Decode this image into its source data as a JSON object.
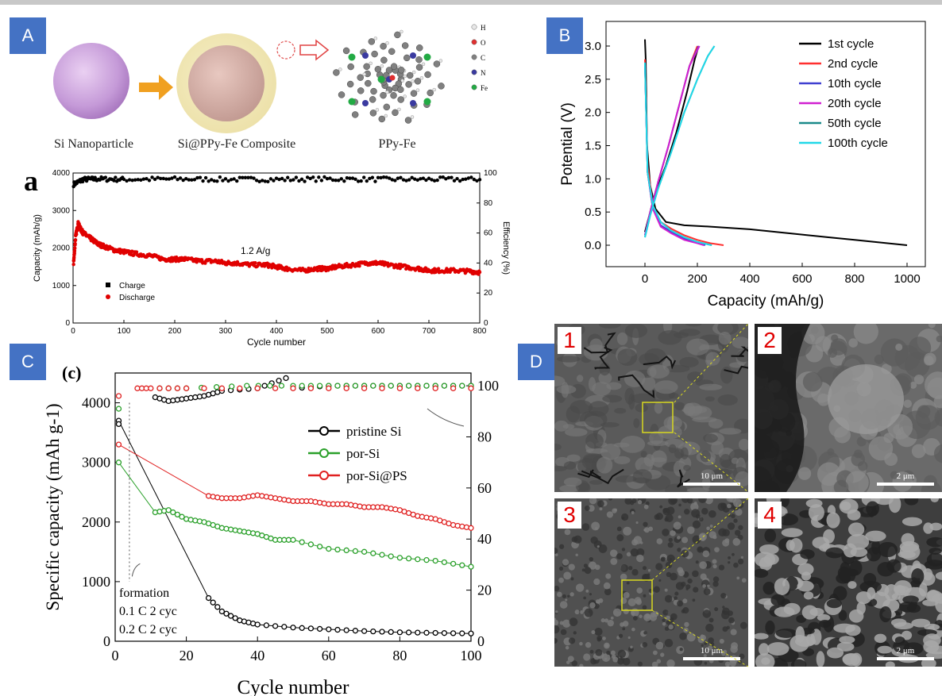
{
  "panels": {
    "A": {
      "label": "A",
      "captions": [
        "Si Nanoparticle",
        "Si@PPy-Fe Composite",
        "PPy-Fe"
      ],
      "legend": [
        {
          "label": "H",
          "color": "#e8e8e8"
        },
        {
          "label": "O",
          "color": "#e03030"
        },
        {
          "label": "C",
          "color": "#808080"
        },
        {
          "label": "N",
          "color": "#3a3aa0"
        },
        {
          "label": "Fe",
          "color": "#22aa44"
        }
      ]
    },
    "B": {
      "label": "B"
    },
    "C": {
      "label": "C"
    },
    "D": {
      "label": "D",
      "images": [
        {
          "number": "1",
          "scale": "10 μm"
        },
        {
          "number": "2",
          "scale": "2 μm"
        },
        {
          "number": "3",
          "scale": "10 μm"
        },
        {
          "number": "4",
          "scale": "2 μm"
        }
      ]
    }
  },
  "chart_data": [
    {
      "id": "a",
      "type": "scatter",
      "panel_letter": "a",
      "xlabel": "Cycle number",
      "ylabel": "Capacity (mAh/g)",
      "y2label": "Efficiency (%)",
      "xlim": [
        0,
        800
      ],
      "ylim": [
        0,
        4000
      ],
      "y2lim": [
        0,
        100
      ],
      "xticks": [
        0,
        100,
        200,
        300,
        400,
        500,
        600,
        700,
        800
      ],
      "yticks": [
        0,
        1000,
        2000,
        3000,
        4000
      ],
      "y2ticks": [
        0,
        20,
        40,
        60,
        80,
        100
      ],
      "annotation": "1.2 A/g",
      "legend_position": "lower-left",
      "series": [
        {
          "name": "Charge",
          "color": "#000000",
          "axis": "left",
          "x": [
            1,
            20,
            50,
            100,
            200,
            300,
            400,
            500,
            600,
            700,
            800
          ],
          "y": [
            3700,
            3830,
            3840,
            3830,
            3840,
            3830,
            3830,
            3840,
            3830,
            3830,
            3830
          ]
        },
        {
          "name": "Discharge",
          "color": "#e00000",
          "axis": "left",
          "x": [
            1,
            5,
            10,
            15,
            20,
            30,
            40,
            50,
            60,
            80,
            100,
            120,
            150,
            180,
            200,
            220,
            250,
            280,
            300,
            320,
            350,
            380,
            400,
            420,
            450,
            480,
            500,
            520,
            550,
            580,
            600,
            620,
            650,
            680,
            700,
            720,
            750,
            780,
            800
          ],
          "y": [
            1600,
            2300,
            2650,
            2500,
            2400,
            2300,
            2200,
            2100,
            2050,
            1950,
            1900,
            1850,
            1800,
            1700,
            1700,
            1700,
            1650,
            1650,
            1600,
            1600,
            1550,
            1550,
            1500,
            1450,
            1400,
            1450,
            1450,
            1500,
            1550,
            1600,
            1600,
            1550,
            1500,
            1450,
            1400,
            1400,
            1400,
            1380,
            1350
          ]
        }
      ]
    },
    {
      "id": "b",
      "type": "line",
      "xlabel": "Capacity (mAh/g)",
      "ylabel": "Potential (V)",
      "xlim": [
        0,
        1000
      ],
      "ylim": [
        0,
        3.0
      ],
      "xticks": [
        0,
        200,
        400,
        600,
        800,
        1000
      ],
      "yticks": [
        0.0,
        0.5,
        1.0,
        1.5,
        2.0,
        2.5,
        3.0
      ],
      "legend_position": "top-right",
      "series": [
        {
          "name": "1st cycle",
          "color": "#000000",
          "discharge": {
            "x": [
              0,
              3,
              8,
              20,
              40,
              80,
              150,
              250,
              400,
              500,
              600,
              700,
              800,
              900,
              1000
            ],
            "y": [
              3.1,
              2.8,
              1.5,
              0.9,
              0.55,
              0.35,
              0.3,
              0.28,
              0.24,
              0.2,
              0.16,
              0.12,
              0.08,
              0.04,
              0.0
            ]
          },
          "charge": {
            "x": [
              0,
              20,
              40,
              80,
              120,
              160,
              190,
              205
            ],
            "y": [
              0.2,
              0.5,
              0.8,
              1.2,
              1.7,
              2.3,
              2.8,
              3.0
            ]
          }
        },
        {
          "name": "2nd cycle",
          "color": "#ff3030",
          "discharge": {
            "x": [
              0,
              10,
              30,
              60,
              100,
              150,
              200,
              250,
              300
            ],
            "y": [
              2.8,
              1.2,
              0.6,
              0.35,
              0.25,
              0.15,
              0.08,
              0.03,
              0.0
            ]
          },
          "charge": {
            "x": [
              0,
              20,
              50,
              90,
              130,
              170,
              200
            ],
            "y": [
              0.15,
              0.5,
              0.95,
              1.5,
              2.1,
              2.7,
              3.0
            ]
          }
        },
        {
          "name": "10th cycle",
          "color": "#3f3fd0",
          "discharge": {
            "x": [
              0,
              10,
              30,
              60,
              100,
              150,
              200,
              230
            ],
            "y": [
              2.75,
              1.1,
              0.55,
              0.3,
              0.2,
              0.1,
              0.04,
              0.0
            ]
          },
          "charge": {
            "x": [
              0,
              20,
              50,
              90,
              130,
              170,
              205
            ],
            "y": [
              0.15,
              0.5,
              0.95,
              1.5,
              2.1,
              2.7,
              3.0
            ]
          }
        },
        {
          "name": "20th cycle",
          "color": "#d020d0",
          "discharge": {
            "x": [
              0,
              10,
              30,
              60,
              100,
              150,
              200,
              225
            ],
            "y": [
              2.75,
              1.1,
              0.55,
              0.28,
              0.18,
              0.08,
              0.03,
              0.0
            ]
          },
          "charge": {
            "x": [
              0,
              20,
              50,
              90,
              130,
              170,
              208
            ],
            "y": [
              0.15,
              0.5,
              0.95,
              1.5,
              2.1,
              2.7,
              3.0
            ]
          }
        },
        {
          "name": "50th cycle",
          "color": "#1a8a8a",
          "discharge": {
            "x": [
              0,
              10,
              30,
              60,
              100,
              150,
              200,
              255
            ],
            "y": [
              2.75,
              1.1,
              0.6,
              0.35,
              0.22,
              0.12,
              0.05,
              0.0
            ]
          },
          "charge": {
            "x": [
              0,
              20,
              50,
              100,
              150,
              200,
              240,
              265
            ],
            "y": [
              0.12,
              0.45,
              0.85,
              1.4,
              2.0,
              2.5,
              2.85,
              3.0
            ]
          }
        },
        {
          "name": "100th cycle",
          "color": "#20d8e8",
          "discharge": {
            "x": [
              0,
              10,
              30,
              60,
              100,
              150,
              200,
              255
            ],
            "y": [
              2.75,
              1.1,
              0.6,
              0.35,
              0.22,
              0.12,
              0.05,
              0.0
            ]
          },
          "charge": {
            "x": [
              0,
              20,
              50,
              100,
              150,
              200,
              240,
              265
            ],
            "y": [
              0.12,
              0.45,
              0.85,
              1.4,
              2.0,
              2.5,
              2.85,
              3.0
            ]
          }
        }
      ]
    },
    {
      "id": "c",
      "type": "line",
      "panel_letter": "(c)",
      "xlabel": "Cycle number",
      "ylabel": "Specific capacity (mAh g-1)",
      "xlim": [
        0,
        100
      ],
      "ylim": [
        0,
        4500
      ],
      "y2lim": [
        0,
        105
      ],
      "xticks": [
        0,
        20,
        40,
        60,
        80,
        100
      ],
      "yticks": [
        0,
        1000,
        2000,
        3000,
        4000
      ],
      "y2ticks": [
        0,
        20,
        40,
        60,
        80,
        100
      ],
      "legend_position": "top-right",
      "annotation": [
        "formation",
        "0.1 C 2 cyc",
        "0.2 C 2 cyc"
      ],
      "series": [
        {
          "name": "pristine Si",
          "color": "#000000",
          "capacity": {
            "x": [
              1,
              2,
              3,
              4,
              5,
              6,
              8,
              10,
              12,
              15,
              18,
              20,
              22,
              25,
              30,
              35,
              40,
              50,
              60,
              70,
              80,
              90,
              100
            ],
            "y": [
              3700,
              3500,
              3300,
              3000,
              2400,
              2100,
              1900,
              1850,
              1850,
              1750,
              1550,
              1300,
              1050,
              800,
              500,
              350,
              280,
              230,
              200,
              170,
              150,
              140,
              130
            ]
          },
          "efficiency": {
            "x": [
              1,
              2,
              3,
              4,
              5,
              6,
              8,
              10,
              15,
              20,
              25,
              30,
              40,
              48,
              49,
              50,
              60,
              70,
              80,
              90,
              100
            ],
            "y": [
              85,
              90,
              92,
              95,
              96,
              97,
              97,
              96,
              94,
              95,
              96,
              98,
              99,
              103,
              96,
              99,
              100,
              100,
              100,
              100,
              100
            ]
          }
        },
        {
          "name": "por-Si",
          "color": "#2aa02a",
          "capacity": {
            "x": [
              1,
              2,
              3,
              4,
              5,
              6,
              8,
              10,
              15,
              20,
              25,
              30,
              35,
              40,
              45,
              50,
              60,
              70,
              80,
              90,
              100
            ],
            "y": [
              3000,
              3000,
              3100,
              2900,
              2400,
              2200,
              2200,
              2150,
              2200,
              2050,
              2000,
              1900,
              1850,
              1800,
              1700,
              1700,
              1550,
              1500,
              1400,
              1350,
              1250
            ]
          },
          "efficiency": {
            "x": [
              1,
              3,
              5,
              8,
              10,
              20,
              37,
              50,
              60,
              70,
              80,
              90,
              100
            ],
            "y": [
              91,
              94,
              97,
              98,
              99,
              99,
              100,
              100,
              100,
              100,
              100,
              100,
              100
            ]
          }
        },
        {
          "name": "por-Si@PS",
          "color": "#e02020",
          "capacity": {
            "x": [
              1,
              2,
              3,
              4,
              5,
              6,
              8,
              10,
              12,
              15,
              18,
              20,
              22,
              25,
              30,
              35,
              40,
              45,
              50,
              55,
              60,
              65,
              70,
              75,
              80,
              85,
              90,
              95,
              100
            ],
            "y": [
              3300,
              3400,
              3200,
              3100,
              2500,
              2400,
              2450,
              2550,
              2500,
              2350,
              2500,
              2450,
              2400,
              2450,
              2400,
              2400,
              2450,
              2400,
              2350,
              2350,
              2300,
              2300,
              2250,
              2250,
              2200,
              2100,
              2050,
              1950,
              1900
            ]
          },
          "efficiency": {
            "x": [
              1,
              2,
              5,
              10,
              20,
              40,
              60,
              80,
              100
            ],
            "y": [
              96,
              98,
              99,
              99,
              99,
              99,
              99,
              99,
              99
            ]
          }
        }
      ]
    }
  ]
}
